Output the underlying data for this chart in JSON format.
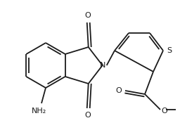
{
  "bg_color": "#ffffff",
  "line_color": "#1a1a1a",
  "lw": 1.3,
  "figsize": [
    2.56,
    1.85
  ],
  "dpi": 100,
  "xlim": [
    0,
    256
  ],
  "ylim": [
    0,
    185
  ]
}
